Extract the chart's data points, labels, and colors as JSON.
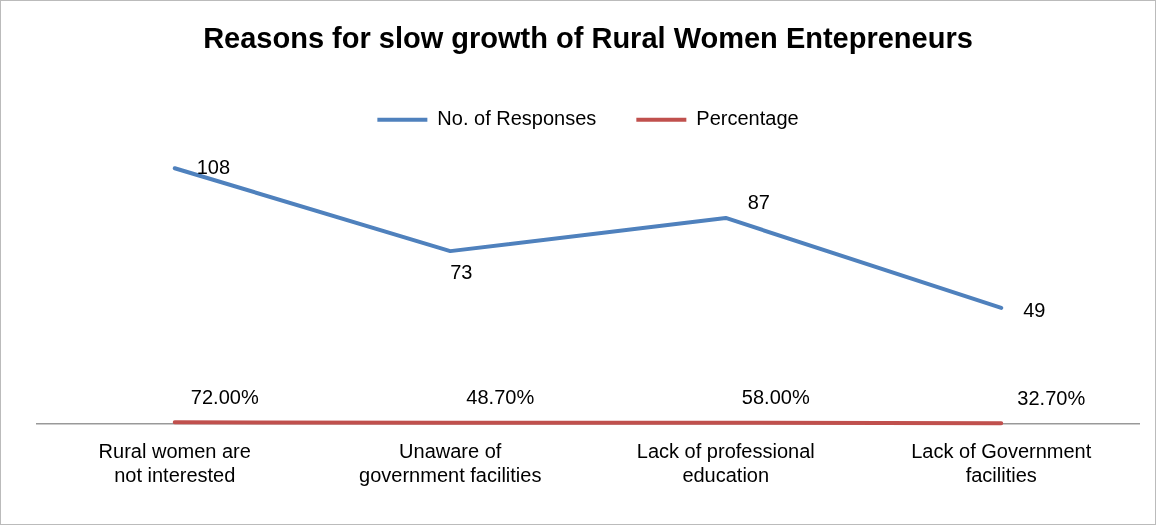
{
  "chart_data": {
    "type": "line",
    "title": "Reasons for slow growth of Rural Women Entepreneurs",
    "categories": [
      "Rural women are not interested",
      "Unaware of government facilities",
      "Lack of professional education",
      "Lack of Government facilities"
    ],
    "series": [
      {
        "name": "No. of Responses",
        "color": "#4f81bd",
        "values": [
          108,
          73,
          87,
          49
        ],
        "value_labels": [
          "108",
          "73",
          "87",
          "49"
        ]
      },
      {
        "name": "Percentage",
        "color": "#c0504d",
        "values": [
          0.72,
          0.487,
          0.58,
          0.327
        ],
        "value_labels": [
          "72.00%",
          "48.70%",
          "58.00%",
          "32.70%"
        ]
      }
    ],
    "grid": false,
    "legend": "top",
    "marker": "none",
    "line_style": "solid"
  }
}
